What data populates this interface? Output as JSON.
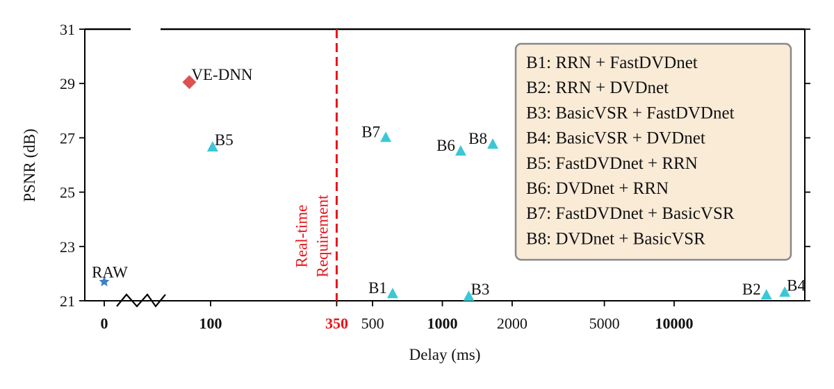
{
  "chart_data": {
    "type": "scatter",
    "title": "",
    "xlabel": "Delay (ms)",
    "ylabel": "PSNR (dB)",
    "ylim": [
      21,
      31
    ],
    "yticks": [
      "21",
      "23",
      "25",
      "27",
      "29",
      "31"
    ],
    "x_scale": "broken-log",
    "xticks": [
      {
        "label": "0",
        "value": 0,
        "bold": true
      },
      {
        "label": "100",
        "value": 100,
        "bold": true
      },
      {
        "label": "350",
        "value": 350,
        "bold": true,
        "color": "#e8141a"
      },
      {
        "label": "500",
        "value": 500,
        "bold": false
      },
      {
        "label": "1000",
        "value": 1000,
        "bold": true
      },
      {
        "label": "2000",
        "value": 2000,
        "bold": false
      },
      {
        "label": "5000",
        "value": 5000,
        "bold": false
      },
      {
        "label": "10000",
        "value": 10000,
        "bold": true
      }
    ],
    "requirement": {
      "value": 350,
      "label_lines": [
        "Real-time",
        "Requirement"
      ],
      "color": "#e8141a"
    },
    "points": [
      {
        "label": "RAW",
        "x": 0,
        "y": 21.7,
        "marker": "star",
        "color": "#3b7fc4",
        "label_pos": "above"
      },
      {
        "label": "VE-DNN",
        "x": 80,
        "y": 29.05,
        "marker": "diamond",
        "color": "#e05050",
        "label_pos": "right"
      },
      {
        "label": "B5",
        "x": 102,
        "y": 26.65,
        "marker": "triangle",
        "color": "#3cc7d6",
        "label_pos": "right"
      },
      {
        "label": "B7",
        "x": 570,
        "y": 27.0,
        "marker": "triangle",
        "color": "#3cc7d6",
        "label_pos": "left"
      },
      {
        "label": "B6",
        "x": 1200,
        "y": 26.5,
        "marker": "triangle",
        "color": "#3cc7d6",
        "label_pos": "left"
      },
      {
        "label": "B8",
        "x": 1650,
        "y": 26.75,
        "marker": "triangle",
        "color": "#3cc7d6",
        "label_pos": "left"
      },
      {
        "label": "B1",
        "x": 610,
        "y": 21.25,
        "marker": "triangle",
        "color": "#3cc7d6",
        "label_pos": "left"
      },
      {
        "label": "B3",
        "x": 1300,
        "y": 21.15,
        "marker": "triangle",
        "color": "#3cc7d6",
        "label_pos": "right"
      },
      {
        "label": "B2",
        "x": 25000,
        "y": 21.2,
        "marker": "triangle",
        "color": "#3cc7d6",
        "label_pos": "left"
      },
      {
        "label": "B4",
        "x": 30000,
        "y": 21.3,
        "marker": "triangle",
        "color": "#3cc7d6",
        "label_pos": "right"
      }
    ],
    "legend": {
      "placement": "top-right",
      "background": "#faebd7",
      "entries": [
        "B1: RRN + FastDVDnet",
        "B2: RRN + DVDnet",
        "B3: BasicVSR + FastDVDnet",
        "B4: BasicVSR + DVDnet",
        "B5: FastDVDnet + RRN",
        "B6: DVDnet + RRN",
        "B7: FastDVDnet + BasicVSR",
        "B8: DVDnet + BasicVSR"
      ]
    }
  }
}
